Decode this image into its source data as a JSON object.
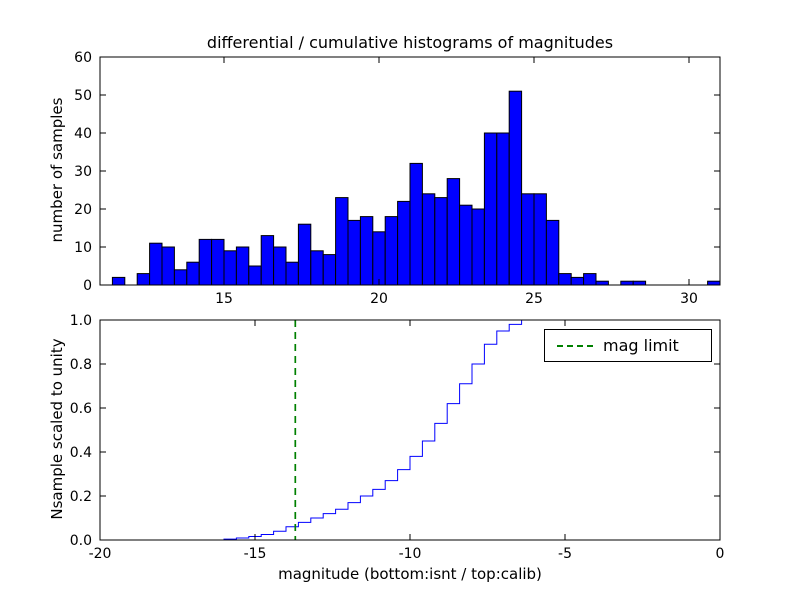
{
  "figure": {
    "background": "#ffffff"
  },
  "chart_data": [
    {
      "type": "bar",
      "subplot": "top",
      "title": "differential / cumulative histograms of magnitudes",
      "ylabel": "number of samples",
      "xlim": [
        11,
        31
      ],
      "ylim": [
        0,
        60
      ],
      "xticks": [
        15,
        20,
        25,
        30
      ],
      "xtick_labels": [
        "15",
        "20",
        "25",
        "30"
      ],
      "yticks": [
        0,
        10,
        20,
        30,
        40,
        50,
        60
      ],
      "ytick_labels": [
        "0",
        "10",
        "20",
        "30",
        "40",
        "50",
        "60"
      ],
      "bin_start": 11.0,
      "bin_width": 0.4,
      "values": [
        0,
        2,
        0,
        3,
        11,
        10,
        4,
        6,
        12,
        12,
        9,
        10,
        5,
        13,
        10,
        6,
        16,
        9,
        8,
        23,
        17,
        18,
        14,
        18,
        22,
        32,
        24,
        23,
        28,
        21,
        20,
        40,
        40,
        51,
        24,
        24,
        17,
        3,
        2,
        3,
        1,
        0,
        1,
        1,
        0,
        0,
        0,
        0,
        0,
        1
      ],
      "bar_fill": "#0000ff",
      "bar_edge": "#000000",
      "grid": false
    },
    {
      "type": "line",
      "subplot": "bottom",
      "ylabel": "Nsample scaled to unity",
      "xlabel": "magnitude (bottom:isnt / top:calib)",
      "xlim": [
        -20,
        0
      ],
      "ylim": [
        0.0,
        1.0
      ],
      "xticks": [
        -20,
        -15,
        -10,
        -5,
        0
      ],
      "xtick_labels": [
        "-20",
        "-15",
        "-10",
        "-5",
        "0"
      ],
      "yticks": [
        0.0,
        0.2,
        0.4,
        0.6,
        0.8,
        1.0
      ],
      "ytick_labels": [
        "0.0",
        "0.2",
        "0.4",
        "0.6",
        "0.8",
        "1.0"
      ],
      "bin_start": -20.0,
      "bin_width": 0.4,
      "cumulative_steps": [
        0,
        0,
        0,
        0,
        0,
        0,
        0,
        0,
        0,
        0,
        0.004,
        0.009,
        0.016,
        0.025,
        0.04,
        0.06,
        0.08,
        0.1,
        0.12,
        0.14,
        0.17,
        0.2,
        0.23,
        0.27,
        0.32,
        0.38,
        0.45,
        0.53,
        0.62,
        0.71,
        0.8,
        0.89,
        0.95,
        0.98,
        1.0,
        1.0,
        1.0,
        1.0,
        1.0,
        1.0,
        1.0,
        1.0,
        1.0,
        1.0,
        1.0,
        1.0,
        1.0,
        1.0,
        1.0,
        1.0
      ],
      "line_color": "#0000ff",
      "mag_limit": {
        "x": -13.7,
        "label": "mag limit",
        "color": "#008000"
      },
      "legend_position": "upper right",
      "grid": false
    }
  ]
}
